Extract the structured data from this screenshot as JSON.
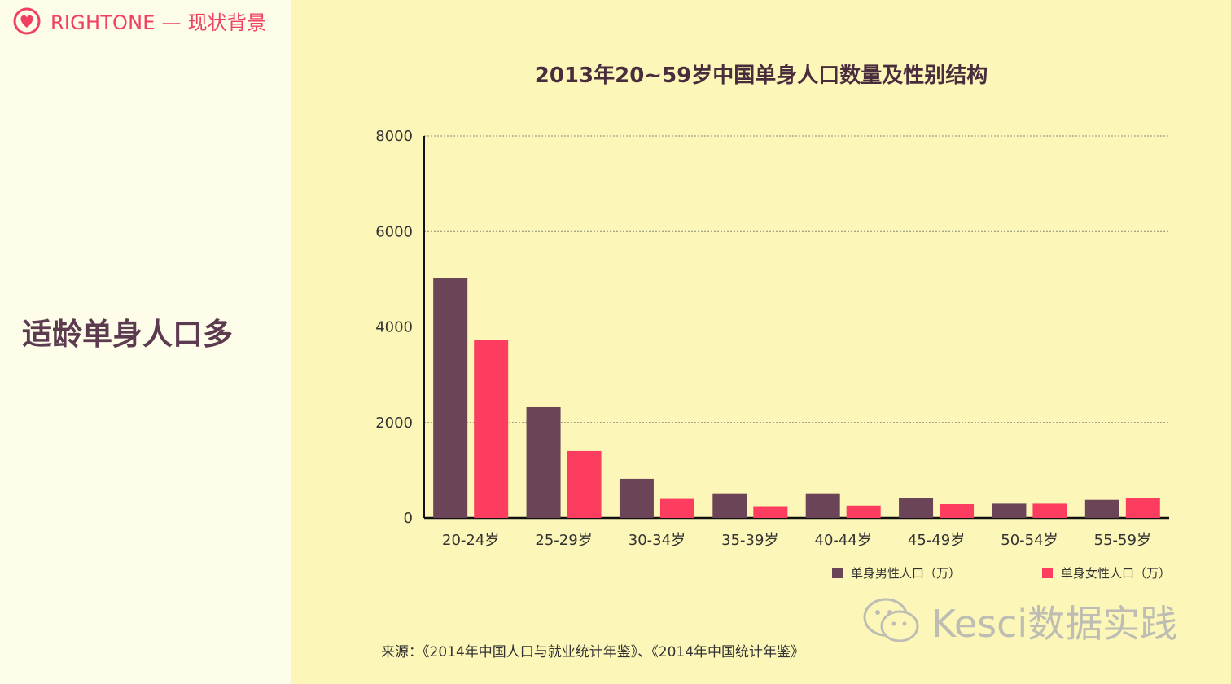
{
  "brand": {
    "text": "RIGHTONE — 现状背景"
  },
  "section": {
    "heading": "适龄单身人口多"
  },
  "source": {
    "text": "来源：《2014年中国人口与就业统计年鉴》、《2014年中国统计年鉴》"
  },
  "watermark": {
    "text": "Kesci数据实践"
  },
  "colors": {
    "male": "#6b4457",
    "female": "#fd3d5f",
    "brand": "#f0405f",
    "grid": "#8a8a7a"
  },
  "chart_data": {
    "type": "bar",
    "title": "2013年20~59岁中国单身人口数量及性别结构",
    "xlabel": "",
    "ylabel": "",
    "categories": [
      "20-24岁",
      "25-29岁",
      "30-34岁",
      "35-39岁",
      "40-44岁",
      "45-49岁",
      "50-54岁",
      "55-59岁"
    ],
    "series": [
      {
        "name": "单身男性人口（万）",
        "values": [
          5030,
          2320,
          820,
          500,
          500,
          420,
          300,
          380
        ]
      },
      {
        "name": "单身女性人口（万）",
        "values": [
          3720,
          1400,
          400,
          230,
          260,
          290,
          300,
          420
        ]
      }
    ],
    "ylim": [
      0,
      8000
    ],
    "yticks": [
      0,
      2000,
      4000,
      6000,
      8000
    ],
    "grid": true,
    "legend_position": "bottom-right"
  }
}
